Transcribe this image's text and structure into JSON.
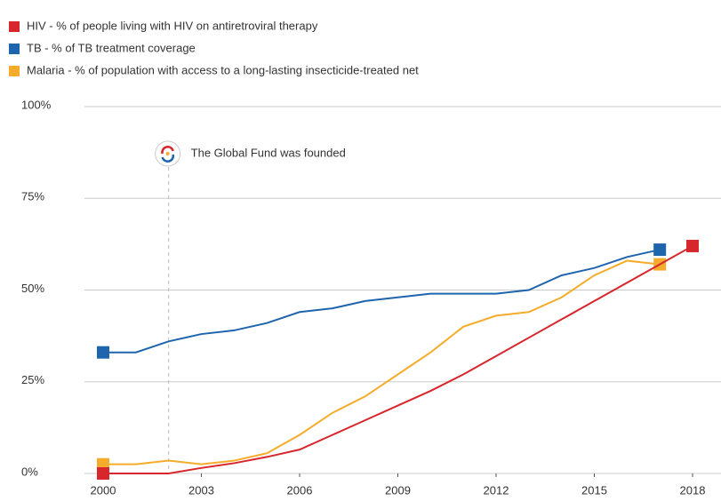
{
  "chart_data": {
    "type": "line",
    "x": [
      2000,
      2001,
      2002,
      2003,
      2004,
      2005,
      2006,
      2007,
      2008,
      2009,
      2010,
      2011,
      2012,
      2013,
      2014,
      2015,
      2016,
      2017,
      2018
    ],
    "series": [
      {
        "name": "HIV - % of people living with HIV on antiretroviral therapy",
        "color": "#d7262c",
        "values": [
          0,
          0,
          0,
          1.5,
          2.8,
          4.5,
          6.5,
          10.5,
          14.5,
          18.5,
          22.5,
          27,
          32,
          37,
          42,
          47,
          52,
          57,
          62
        ]
      },
      {
        "name": "TB - % of TB treatment coverage",
        "color": "#1f65ad",
        "values": [
          33,
          33,
          36,
          38,
          39,
          41,
          44,
          45,
          47,
          48,
          49,
          49,
          49,
          50,
          54,
          56,
          59,
          61,
          null
        ]
      },
      {
        "name": "Malaria - % of population with access to a long-lasting insecticide-treated net",
        "color": "#f5ac2b",
        "values": [
          2.5,
          2.5,
          3.5,
          2.5,
          3.5,
          5.5,
          10.5,
          16.5,
          21,
          27,
          33,
          40,
          43,
          44,
          48,
          54,
          58,
          57,
          null
        ]
      }
    ],
    "xlim": [
      2000,
      2018
    ],
    "xticks": [
      2000,
      2003,
      2006,
      2009,
      2012,
      2015,
      2018
    ],
    "ylim": [
      0,
      100
    ],
    "yticks": [
      {
        "value": 0,
        "label": "0%"
      },
      {
        "value": 25,
        "label": "25%"
      },
      {
        "value": 50,
        "label": "50%"
      },
      {
        "value": 75,
        "label": "75%"
      },
      {
        "value": 100,
        "label": "100%"
      }
    ],
    "grid": true,
    "annotation": {
      "text": "The Global Fund was founded",
      "x": 2002
    }
  }
}
